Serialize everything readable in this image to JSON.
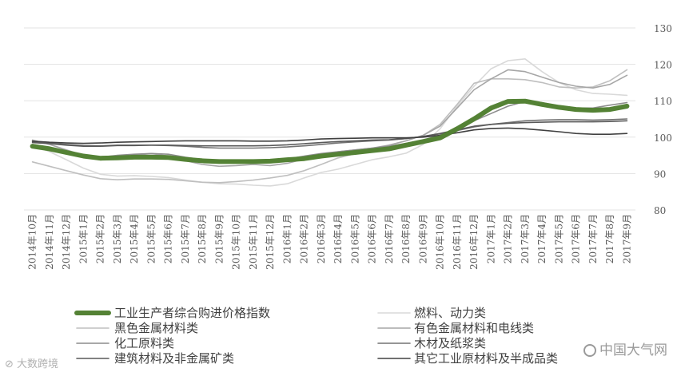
{
  "chart_data": {
    "type": "line",
    "title": "",
    "xlabel": "",
    "ylabel": "",
    "ylim": [
      80,
      130
    ],
    "yticks": [
      80,
      90,
      100,
      110,
      120,
      130
    ],
    "grid": "horizontal",
    "legend_position": "bottom",
    "x": [
      "2014年10月",
      "2014年11月",
      "2014年12月",
      "2015年1月",
      "2015年2月",
      "2015年3月",
      "2015年4月",
      "2015年5月",
      "2015年6月",
      "2015年7月",
      "2015年8月",
      "2015年9月",
      "2015年10月",
      "2015年11月",
      "2015年12月",
      "2016年1月",
      "2016年2月",
      "2016年3月",
      "2016年4月",
      "2016年5月",
      "2016年6月",
      "2016年7月",
      "2016年8月",
      "2016年9月",
      "2016年10月",
      "2016年11月",
      "2016年12月",
      "2017年1月",
      "2017年2月",
      "2017年3月",
      "2017年4月",
      "2017年5月",
      "2017年6月",
      "2017年7月",
      "2017年8月",
      "2017年9月"
    ],
    "series": [
      {
        "name": "工业生产者综合购进价格指数",
        "color": "#548235",
        "width": 6,
        "values": [
          97.5,
          96.8,
          95.8,
          94.8,
          94.2,
          94.3,
          94.5,
          94.5,
          94.4,
          93.9,
          93.5,
          93.3,
          93.3,
          93.3,
          93.4,
          93.8,
          94.1,
          94.8,
          95.3,
          95.8,
          96.3,
          96.8,
          97.8,
          98.8,
          99.8,
          102.3,
          105.0,
          108.0,
          109.8,
          109.9,
          109.0,
          108.2,
          107.6,
          107.4,
          107.6,
          108.5
        ]
      },
      {
        "name": "燃料、动力类",
        "color": "#d9d9d9",
        "width": 1.6,
        "values": [
          97.8,
          96.0,
          93.8,
          91.5,
          89.8,
          89.3,
          89.4,
          89.2,
          88.9,
          88.2,
          87.6,
          87.2,
          87.1,
          86.8,
          86.6,
          87.2,
          88.8,
          90.3,
          91.2,
          92.5,
          93.8,
          94.6,
          95.6,
          98.0,
          102.3,
          108.5,
          114.0,
          118.8,
          121.0,
          121.5,
          118.0,
          115.0,
          113.0,
          112.0,
          111.8,
          111.5
        ]
      },
      {
        "name": "黑色金属材料类",
        "color": "#bfbfbf",
        "width": 1.6,
        "values": [
          93.2,
          92.0,
          90.8,
          89.6,
          88.6,
          88.3,
          88.5,
          88.5,
          88.4,
          88.0,
          87.6,
          87.5,
          87.8,
          88.2,
          88.8,
          89.5,
          90.8,
          92.5,
          94.3,
          95.5,
          96.5,
          97.8,
          99.0,
          100.5,
          103.5,
          109.0,
          114.8,
          116.0,
          116.0,
          115.8,
          115.0,
          113.8,
          113.5,
          113.8,
          115.5,
          118.5
        ]
      },
      {
        "name": "有色金属材料和电线类",
        "color": "#a6a6a6",
        "width": 1.6,
        "values": [
          99.2,
          98.0,
          96.5,
          95.0,
          94.0,
          94.3,
          95.0,
          95.5,
          94.8,
          93.5,
          92.5,
          92.0,
          92.2,
          92.5,
          92.2,
          92.8,
          94.0,
          95.0,
          96.0,
          96.5,
          97.0,
          97.8,
          99.0,
          100.5,
          103.0,
          108.0,
          113.0,
          116.0,
          118.5,
          118.0,
          116.5,
          115.0,
          114.0,
          113.5,
          114.5,
          117.0
        ]
      },
      {
        "name": "化工原料类",
        "color": "#8c8c8c",
        "width": 1.6,
        "values": [
          98.0,
          97.2,
          96.0,
          94.8,
          94.5,
          95.0,
          95.3,
          95.5,
          95.3,
          94.5,
          93.8,
          93.5,
          93.5,
          93.3,
          93.5,
          94.0,
          94.8,
          95.5,
          96.0,
          96.5,
          97.0,
          97.5,
          98.3,
          99.2,
          100.5,
          102.5,
          104.5,
          106.5,
          108.5,
          109.8,
          109.5,
          108.5,
          108.0,
          108.0,
          108.8,
          109.5
        ]
      },
      {
        "name": "木材及纸浆类",
        "color": "#737373",
        "width": 1.6,
        "values": [
          98.8,
          98.4,
          98.0,
          97.7,
          97.6,
          97.8,
          97.8,
          97.8,
          97.7,
          97.5,
          97.2,
          97.0,
          97.0,
          97.0,
          97.1,
          97.3,
          97.6,
          98.0,
          98.4,
          98.7,
          99.0,
          99.2,
          99.6,
          100.2,
          100.9,
          101.8,
          102.8,
          103.5,
          104.0,
          104.5,
          104.7,
          104.8,
          104.8,
          104.7,
          104.8,
          105.0
        ]
      },
      {
        "name": "建筑材料及非金属矿类",
        "color": "#595959",
        "width": 1.6,
        "values": [
          98.5,
          98.2,
          97.8,
          97.5,
          97.5,
          97.7,
          97.7,
          97.8,
          97.8,
          97.7,
          97.6,
          97.6,
          97.6,
          97.6,
          97.7,
          97.9,
          98.2,
          98.5,
          98.8,
          99.0,
          99.2,
          99.3,
          99.6,
          100.2,
          101.0,
          102.0,
          103.0,
          103.5,
          103.8,
          104.0,
          104.1,
          104.2,
          104.2,
          104.2,
          104.3,
          104.5
        ]
      },
      {
        "name": "其它工业原材料及半成品类",
        "color": "#404040",
        "width": 1.6,
        "values": [
          98.9,
          98.6,
          98.4,
          98.3,
          98.4,
          98.6,
          98.7,
          98.8,
          98.9,
          99.0,
          99.0,
          99.0,
          99.0,
          98.9,
          98.9,
          99.0,
          99.2,
          99.5,
          99.6,
          99.7,
          99.8,
          99.8,
          99.8,
          100.0,
          100.5,
          101.2,
          102.0,
          102.4,
          102.5,
          102.3,
          101.9,
          101.5,
          101.0,
          100.8,
          100.8,
          101.0
        ]
      }
    ]
  },
  "watermarks": {
    "left": "大数跨境",
    "right": "中国大气网"
  }
}
